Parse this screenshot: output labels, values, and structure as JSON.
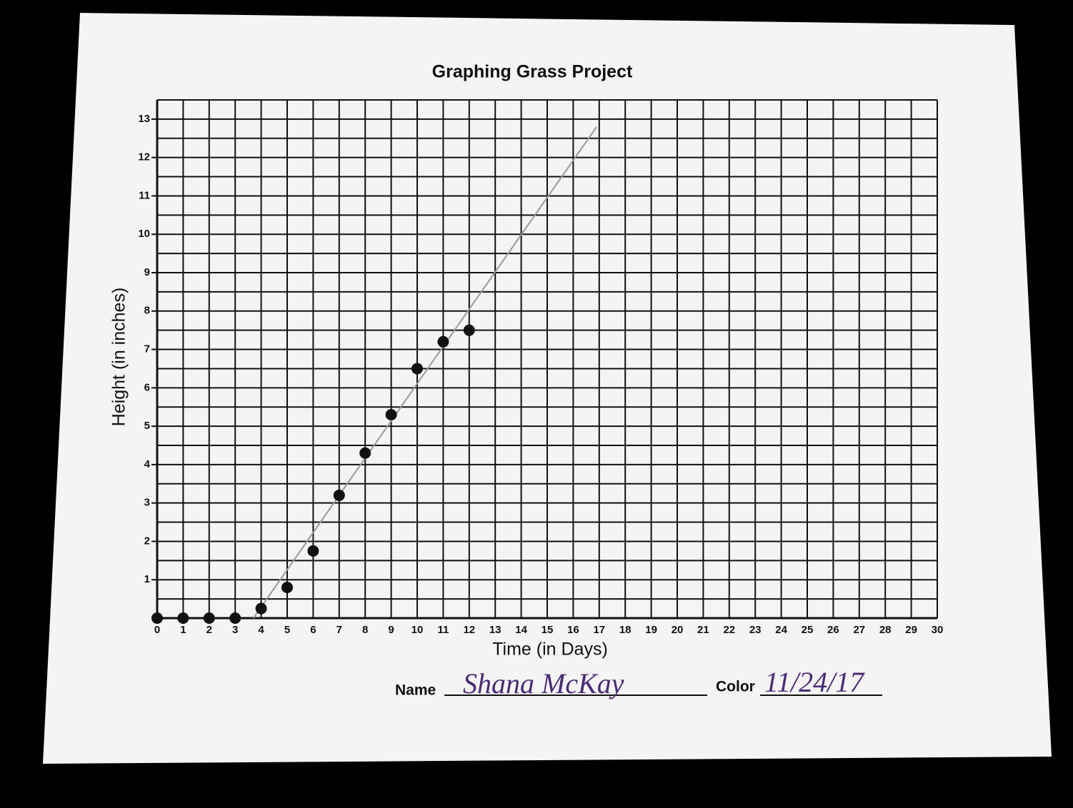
{
  "chart_data": {
    "type": "scatter",
    "title": "Graphing Grass Project",
    "x_label": "Time (in Days)",
    "y_label": "Height (in inches)",
    "x": [
      0,
      1,
      2,
      3,
      4,
      5,
      6,
      7,
      8,
      9,
      10,
      11,
      12
    ],
    "values": [
      0,
      0,
      0,
      0,
      0.25,
      0.8,
      1.75,
      3.2,
      4.3,
      5.3,
      6.5,
      7.2,
      7.5
    ],
    "color": "#111111",
    "trend_line": {
      "x": [
        3.7,
        16.9
      ],
      "y": [
        0,
        12.8
      ],
      "color": "#9a9a9a"
    },
    "xlim": [
      0,
      30
    ],
    "xticks": [
      0,
      1,
      2,
      3,
      4,
      5,
      6,
      7,
      8,
      9,
      10,
      11,
      12,
      13,
      14,
      15,
      16,
      17,
      18,
      19,
      20,
      21,
      22,
      23,
      24,
      25,
      26,
      27,
      28,
      29,
      30
    ],
    "ylim": [
      0,
      13.5
    ],
    "yticks": [
      1,
      2,
      3,
      4,
      5,
      6,
      7,
      8,
      9,
      10,
      11,
      12,
      13
    ],
    "grid": true,
    "grid_step": 0.5
  },
  "form": {
    "name_label": "Name",
    "name": "Shana McKay",
    "color_label": "Color",
    "color": "11/24/17"
  }
}
